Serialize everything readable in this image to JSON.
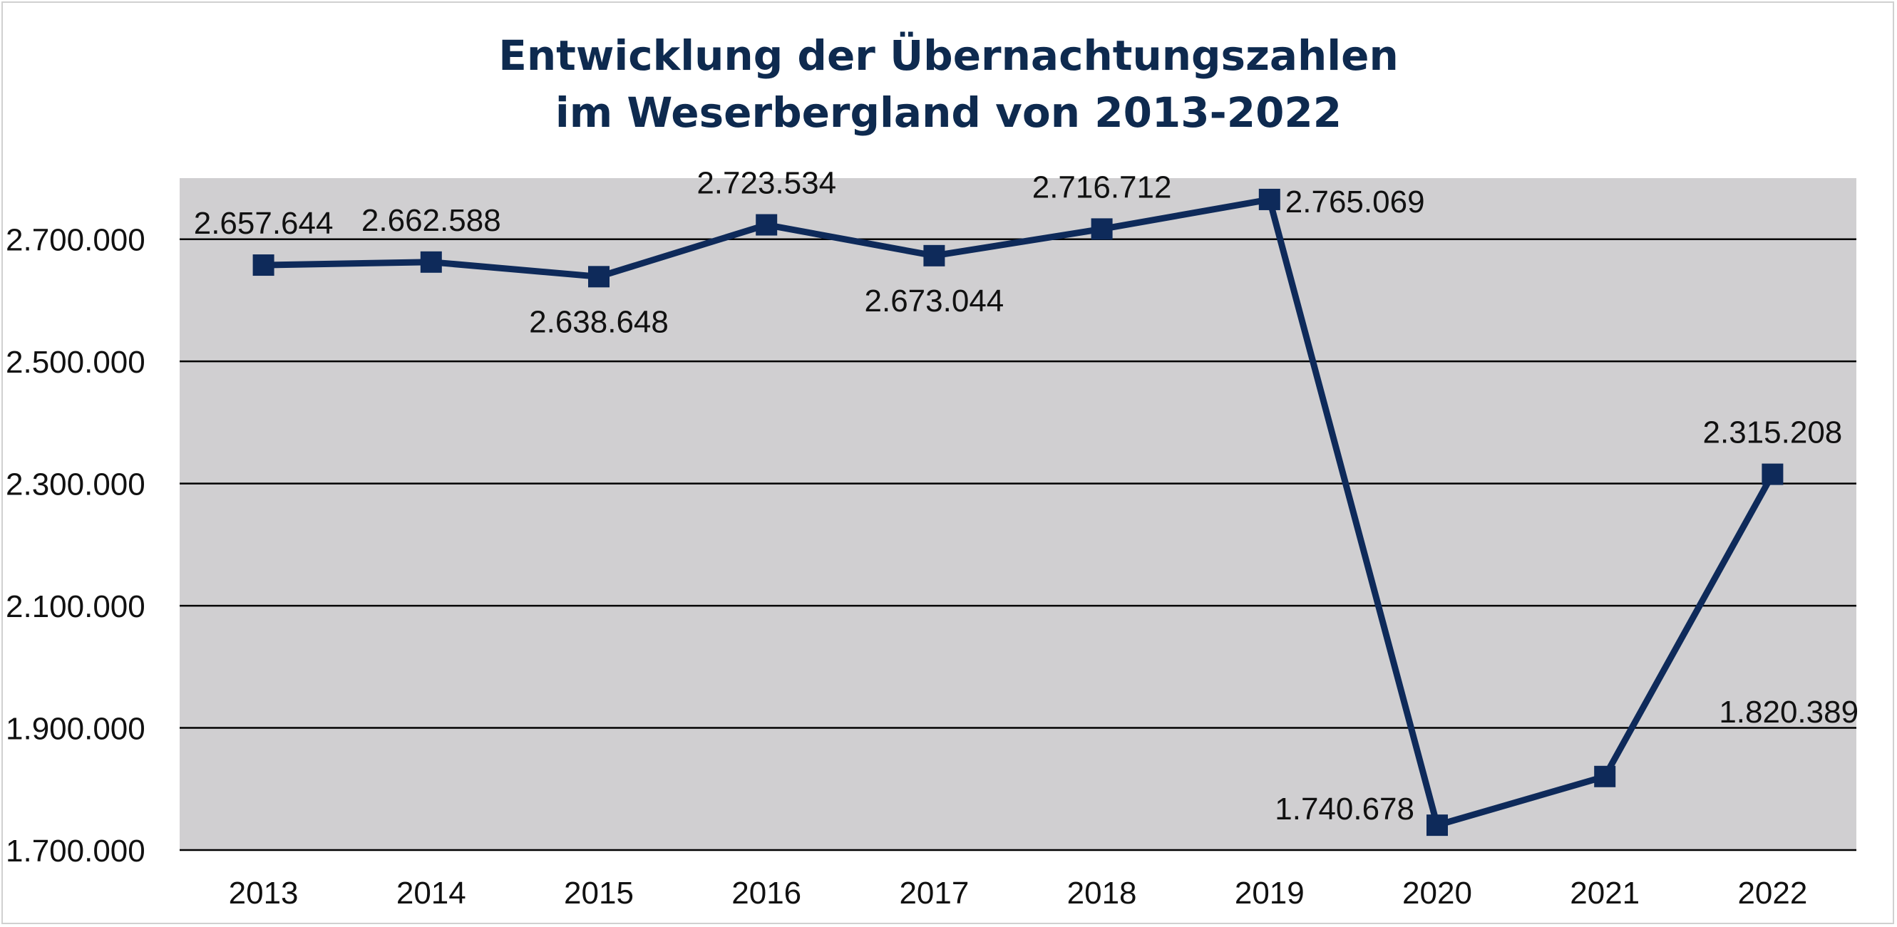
{
  "chart_data": {
    "type": "line",
    "title": "Entwicklung der Übernachtungszahlen",
    "subtitle": "im Weserbergland von 2013-2022",
    "xlabel": "",
    "ylabel": "",
    "categories": [
      "2013",
      "2014",
      "2015",
      "2016",
      "2017",
      "2018",
      "2019",
      "2020",
      "2021",
      "2022"
    ],
    "series": [
      {
        "values": [
          2657644,
          2662588,
          2638648,
          2723534,
          2673044,
          2716712,
          2765069,
          1740678,
          1820389,
          2315208
        ],
        "labels": [
          "2.657.644",
          "2.662.588",
          "2.638.648",
          "2.723.534",
          "2.673.044",
          "2.716.712",
          "2.765.069",
          "1.740.678",
          "1.820.389",
          "2.315.208"
        ],
        "label_positions": [
          "above",
          "above",
          "below",
          "above",
          "below",
          "above",
          "right",
          "left",
          "above-right",
          "above"
        ]
      }
    ],
    "ylim": [
      1700000,
      2800000
    ],
    "yticks": [
      1700000,
      1900000,
      2100000,
      2300000,
      2500000,
      2700000
    ],
    "ytick_labels": [
      "1.700.000",
      "1.900.000",
      "2.100.000",
      "2.300.000",
      "2.500.000",
      "2.700.000"
    ],
    "grid": true,
    "legend": "none",
    "colors": {
      "line": "#0e2a5a",
      "plot_background": "#d0cfd1",
      "grid": "#000000",
      "title": "#0e2a4f"
    }
  }
}
